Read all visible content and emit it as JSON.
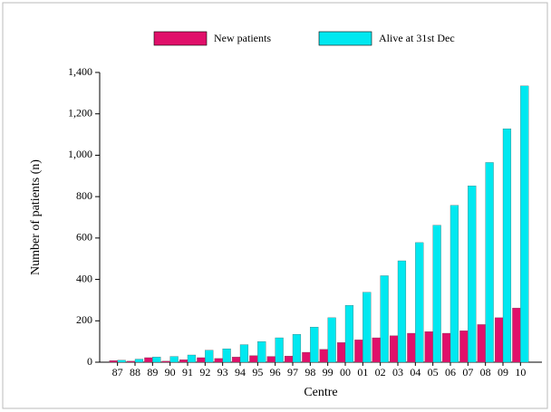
{
  "chart_data": {
    "type": "bar",
    "categories": [
      "87",
      "88",
      "89",
      "90",
      "91",
      "92",
      "93",
      "94",
      "95",
      "96",
      "97",
      "98",
      "99",
      "00",
      "01",
      "02",
      "03",
      "04",
      "05",
      "06",
      "07",
      "08",
      "09",
      "10"
    ],
    "series": [
      {
        "name": "New patients",
        "color": "#e0106a",
        "values": [
          8,
          5,
          22,
          5,
          12,
          22,
          18,
          25,
          32,
          28,
          30,
          48,
          62,
          95,
          108,
          118,
          128,
          140,
          148,
          140,
          152,
          182,
          215,
          262
        ]
      },
      {
        "name": "Alive at 31st Dec",
        "color": "#00e8f0",
        "values": [
          10,
          15,
          25,
          28,
          35,
          58,
          65,
          85,
          100,
          118,
          135,
          170,
          215,
          275,
          338,
          418,
          490,
          578,
          662,
          758,
          852,
          965,
          1128,
          1335
        ]
      }
    ],
    "ylim": [
      0,
      1400
    ],
    "yticks": [
      0,
      200,
      400,
      600,
      800,
      {
        "value": 1000,
        "label": "1,000"
      },
      {
        "value": 1200,
        "label": "1,200"
      },
      {
        "value": 1400,
        "label": "1,400"
      }
    ],
    "xlabel": "Centre",
    "ylabel": "Number of patients (n)",
    "legend": "top"
  }
}
